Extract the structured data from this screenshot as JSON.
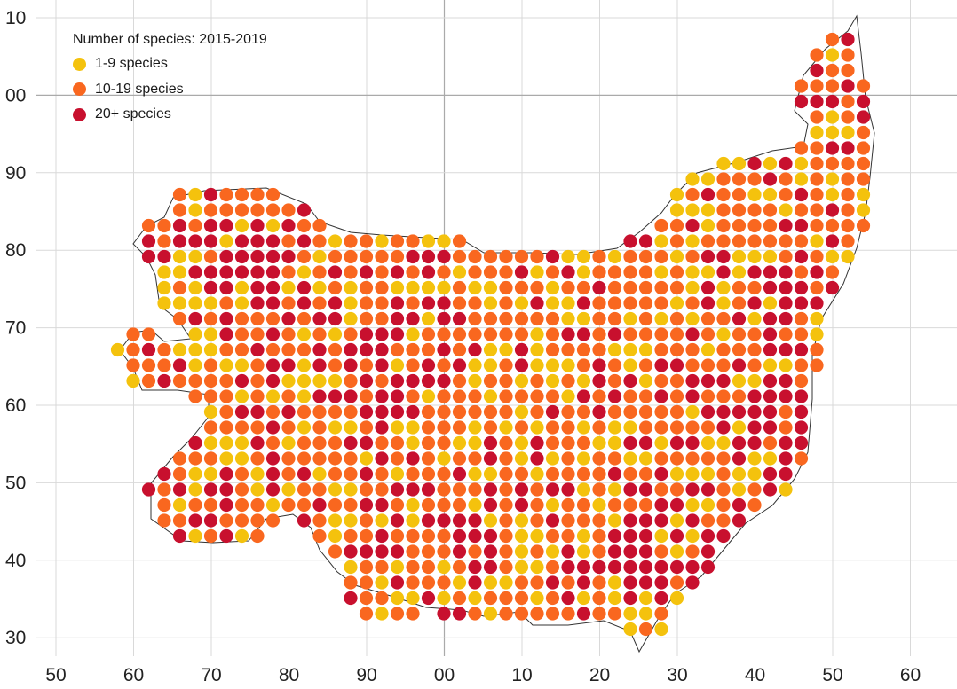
{
  "legend": {
    "title": "Number of species:  2015-2019",
    "items": [
      {
        "label": "1-9 species",
        "color": "#f4c20d"
      },
      {
        "label": "10-19 species",
        "color": "#f9671f"
      },
      {
        "label": "20+ species",
        "color": "#c8102e"
      }
    ]
  },
  "axes": {
    "x_ticks": [
      "50",
      "60",
      "70",
      "80",
      "90",
      "00",
      "10",
      "20",
      "30",
      "40",
      "50",
      "60"
    ],
    "y_ticks": [
      "10",
      "00",
      "90",
      "80",
      "70",
      "60",
      "50",
      "40",
      "30"
    ]
  },
  "colors": {
    "grid": "#d9d9d9",
    "grid_major": "#aaaaaa",
    "boundary": "#333333",
    "background": "#ffffff"
  }
}
